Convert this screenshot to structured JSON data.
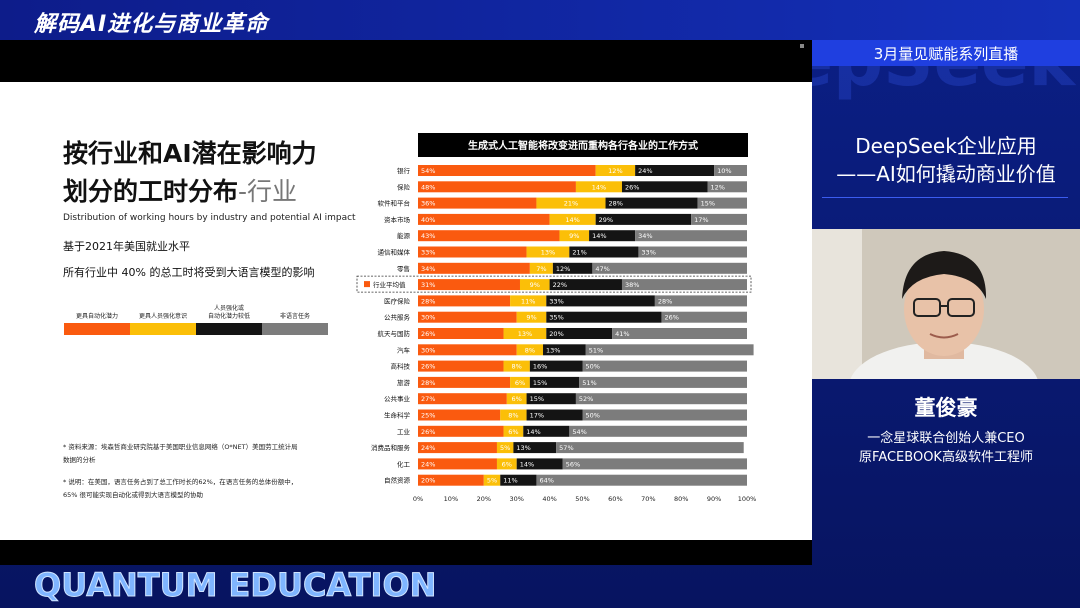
{
  "header": {
    "show_title": "解码AI进化与商业革命",
    "watermark": "DeepSeek",
    "brand": "QUANTUM EDUCATION"
  },
  "panel": {
    "series": "3月量见赋能系列直播",
    "talk_title_1": "DeepSeek企业应用",
    "talk_title_2": "——AI如何撬动商业价值",
    "speaker_name": "董俊豪",
    "speaker_title_1": "一念星球联合创始人兼CEO",
    "speaker_title_2": "原FACEBOOK高级软件工程师"
  },
  "slide": {
    "title_line1": "按行业和AI潜在影响力",
    "title_line2": "划分的工时分布",
    "title_accent": "-行业",
    "subtitle": "Distribution of working hours by industry and potential AI impact",
    "desc1": "基于2021年美国就业水平",
    "desc2": "所有行业中 40% 的总工时将受到大语言模型的影响",
    "legend": [
      "更具自动化潜力",
      "更具人员强化意识",
      "人员强化或\n自动化潜力较低",
      "非语言任务"
    ],
    "note1": "* 资料来源：埃森哲商业研究院基于美国职业信息网络（O*NET）美国劳工统计局数据的分析",
    "note2": "* 说明：在美国，语言任务占到了总工作时长的62%，在语言任务的总体份额中，65% 很可能实现自动化或得到大语言模型的协助"
  },
  "chart_data": {
    "type": "bar",
    "title": "生成式人工智能将改变进而重构各行各业的工作方式",
    "categories": [
      "银行",
      "保险",
      "软件和平台",
      "资本市场",
      "能源",
      "通信和媒体",
      "零售",
      "行业平均值",
      "医疗保险",
      "公共服务",
      "航天与国防",
      "汽车",
      "高科技",
      "旅游",
      "公共事业",
      "生命科学",
      "工业",
      "消费品和服务",
      "化工",
      "自然资源"
    ],
    "highlight_index": 7,
    "series": [
      {
        "name": "更具自动化潜力",
        "color": "#fa5a0f",
        "values": [
          54,
          48,
          36,
          40,
          43,
          33,
          34,
          31,
          28,
          30,
          26,
          30,
          26,
          28,
          27,
          25,
          26,
          24,
          24,
          20
        ]
      },
      {
        "name": "更具人员强化意识",
        "color": "#fbbf08",
        "values": [
          12,
          14,
          21,
          14,
          9,
          13,
          7,
          9,
          11,
          9,
          13,
          8,
          8,
          6,
          6,
          8,
          6,
          5,
          6,
          5
        ]
      },
      {
        "name": "人员强化或自动化潜力较低",
        "color": "#141414",
        "values": [
          24,
          26,
          28,
          29,
          14,
          21,
          12,
          22,
          33,
          35,
          20,
          13,
          16,
          15,
          15,
          17,
          14,
          13,
          14,
          11
        ]
      },
      {
        "name": "非语言任务",
        "color": "#7c7c7c",
        "values": [
          10,
          12,
          15,
          17,
          34,
          33,
          47,
          38,
          28,
          26,
          41,
          51,
          50,
          51,
          52,
          50,
          54,
          57,
          56,
          64
        ]
      }
    ],
    "x_ticks": [
      "0%",
      "10%",
      "20%",
      "30%",
      "40%",
      "50%",
      "60%",
      "70%",
      "80%",
      "90%",
      "100%"
    ],
    "xlim": [
      0,
      100
    ]
  },
  "colors": {
    "bg": "#0a1a6e",
    "accent": "#1f3fe0"
  }
}
